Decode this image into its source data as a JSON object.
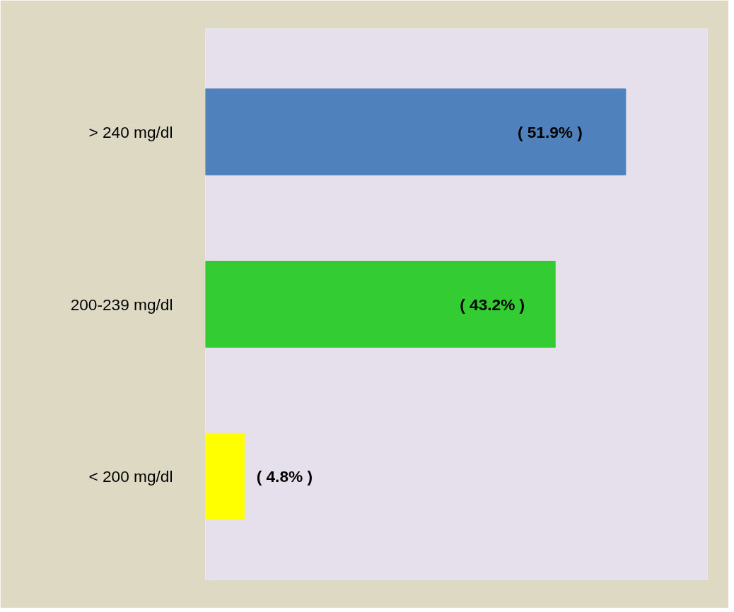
{
  "chart_data": {
    "type": "bar",
    "orientation": "horizontal",
    "categories": [
      "> 240 mg/dl",
      "200-239 mg/dl",
      "< 200 mg/dl"
    ],
    "values": [
      51.9,
      43.2,
      4.8
    ],
    "colors": [
      "#4f81bd",
      "#33cc33",
      "#ffff00"
    ],
    "value_labels": [
      "( 51.9% )",
      "( 43.2% )",
      "( 4.8% )"
    ],
    "xlim": [
      0,
      62
    ],
    "tick_labels": "y",
    "grid": false
  }
}
